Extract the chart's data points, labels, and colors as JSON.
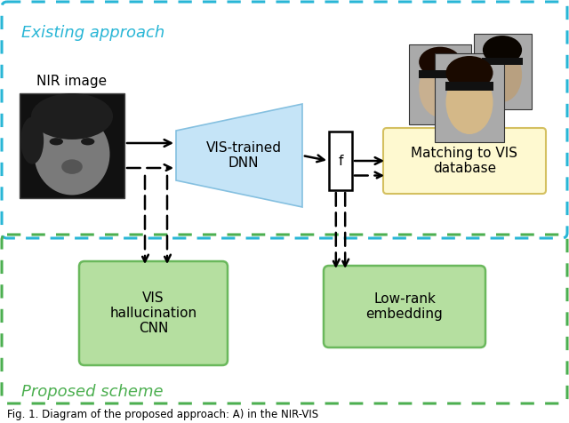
{
  "existing_label": "Existing approach",
  "proposed_label": "Proposed scheme",
  "nir_label": "NIR image",
  "dnn_label": "VIS-trained\nDNN",
  "f_label": "f",
  "matching_label": "Matching to VIS\ndatabase",
  "hallucination_label": "VIS\nhallucination\nCNN",
  "lowrank_label": "Low-rank\nembedding",
  "caption": "Fig. 1. Diagram of the proposed approach: A) in the NIR-VIS",
  "existing_box_color": "#29b6d6",
  "proposed_box_color": "#4caf50",
  "existing_label_color": "#29b6d6",
  "proposed_label_color": "#4caf50",
  "dnn_fill": "#c5e4f7",
  "dnn_edge": "#85c0e0",
  "matching_fill": "#fef9d0",
  "matching_edge": "#d4c060",
  "hallucination_fill": "#b5dfa0",
  "hallucination_edge": "#6ab85c",
  "lowrank_fill": "#b5dfa0",
  "lowrank_edge": "#6ab85c",
  "bg_color": "#ffffff",
  "nir_bg": "#111111",
  "nir_face": "#808080",
  "nir_hair": "#222222"
}
